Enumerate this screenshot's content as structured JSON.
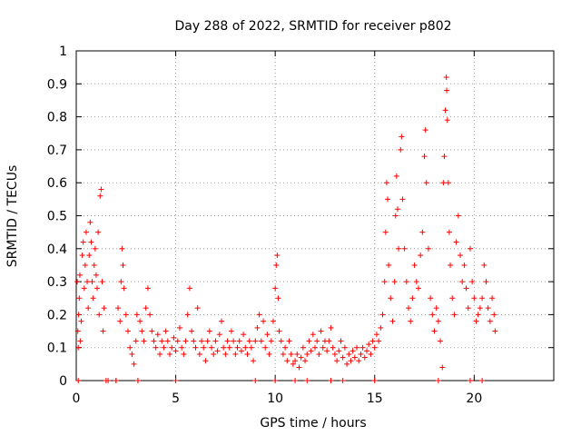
{
  "chart_data": {
    "type": "scatter",
    "title": "Day 288 of 2022, SRMTID for receiver p802",
    "xlabel": "GPS time / hours",
    "ylabel": "SRMTID / TECUs",
    "xlim": [
      0,
      24
    ],
    "ylim": [
      0,
      1
    ],
    "xticks": [
      "0",
      "5",
      "10",
      "15",
      "20"
    ],
    "yticks": [
      "0",
      "0.1",
      "0.2",
      "0.3",
      "0.4",
      "0.5",
      "0.6",
      "0.7",
      "0.8",
      "0.9",
      "1"
    ],
    "grid": true,
    "marker": "+",
    "color": "#ff0000",
    "series": [
      {
        "name": "SRMTID",
        "points": [
          [
            0.05,
            0.3
          ],
          [
            0.08,
            0.15
          ],
          [
            0.1,
            0.1
          ],
          [
            0.12,
            0.2
          ],
          [
            0.15,
            0.25
          ],
          [
            0.18,
            0.32
          ],
          [
            0.2,
            0.12
          ],
          [
            0.25,
            0.18
          ],
          [
            0.3,
            0.38
          ],
          [
            0.35,
            0.42
          ],
          [
            0.4,
            0.28
          ],
          [
            0.45,
            0.35
          ],
          [
            0.5,
            0.45
          ],
          [
            0.55,
            0.3
          ],
          [
            0.6,
            0.22
          ],
          [
            0.65,
            0.38
          ],
          [
            0.7,
            0.48
          ],
          [
            0.75,
            0.42
          ],
          [
            0.8,
            0.3
          ],
          [
            0.85,
            0.25
          ],
          [
            0.9,
            0.35
          ],
          [
            0.95,
            0.4
          ],
          [
            1.0,
            0.32
          ],
          [
            1.05,
            0.28
          ],
          [
            1.1,
            0.45
          ],
          [
            1.15,
            0.2
          ],
          [
            1.2,
            0.56
          ],
          [
            1.25,
            0.58
          ],
          [
            1.3,
            0.3
          ],
          [
            1.35,
            0.15
          ],
          [
            1.4,
            0.22
          ],
          [
            1.5,
            0.0
          ],
          [
            2.0,
            0.0
          ],
          [
            2.1,
            0.22
          ],
          [
            2.2,
            0.18
          ],
          [
            2.25,
            0.3
          ],
          [
            2.3,
            0.4
          ],
          [
            2.35,
            0.35
          ],
          [
            2.4,
            0.28
          ],
          [
            2.5,
            0.2
          ],
          [
            2.6,
            0.15
          ],
          [
            2.7,
            0.1
          ],
          [
            2.8,
            0.08
          ],
          [
            2.9,
            0.05
          ],
          [
            3.0,
            0.12
          ],
          [
            3.05,
            0.2
          ],
          [
            3.1,
            0.0
          ],
          [
            3.2,
            0.18
          ],
          [
            3.3,
            0.15
          ],
          [
            3.4,
            0.12
          ],
          [
            3.5,
            0.22
          ],
          [
            3.6,
            0.28
          ],
          [
            3.7,
            0.2
          ],
          [
            3.8,
            0.15
          ],
          [
            3.9,
            0.12
          ],
          [
            4.0,
            0.1
          ],
          [
            4.1,
            0.14
          ],
          [
            4.2,
            0.08
          ],
          [
            4.3,
            0.12
          ],
          [
            4.4,
            0.1
          ],
          [
            4.5,
            0.15
          ],
          [
            4.6,
            0.12
          ],
          [
            4.7,
            0.08
          ],
          [
            4.8,
            0.1
          ],
          [
            4.9,
            0.13
          ],
          [
            5.0,
            0.09
          ],
          [
            5.1,
            0.12
          ],
          [
            5.2,
            0.16
          ],
          [
            5.3,
            0.1
          ],
          [
            5.4,
            0.08
          ],
          [
            5.5,
            0.12
          ],
          [
            5.6,
            0.2
          ],
          [
            5.7,
            0.28
          ],
          [
            5.8,
            0.15
          ],
          [
            5.9,
            0.12
          ],
          [
            6.0,
            0.1
          ],
          [
            6.1,
            0.22
          ],
          [
            6.2,
            0.08
          ],
          [
            6.3,
            0.12
          ],
          [
            6.4,
            0.1
          ],
          [
            6.5,
            0.06
          ],
          [
            6.6,
            0.12
          ],
          [
            6.7,
            0.15
          ],
          [
            6.8,
            0.1
          ],
          [
            6.9,
            0.08
          ],
          [
            7.0,
            0.12
          ],
          [
            7.1,
            0.09
          ],
          [
            7.2,
            0.14
          ],
          [
            7.3,
            0.18
          ],
          [
            7.4,
            0.1
          ],
          [
            7.5,
            0.08
          ],
          [
            7.6,
            0.12
          ],
          [
            7.7,
            0.1
          ],
          [
            7.8,
            0.15
          ],
          [
            7.9,
            0.12
          ],
          [
            8.0,
            0.08
          ],
          [
            8.1,
            0.1
          ],
          [
            8.2,
            0.12
          ],
          [
            8.3,
            0.09
          ],
          [
            8.4,
            0.14
          ],
          [
            8.5,
            0.1
          ],
          [
            8.6,
            0.08
          ],
          [
            8.7,
            0.12
          ],
          [
            8.8,
            0.1
          ],
          [
            8.9,
            0.06
          ],
          [
            9.0,
            0.12
          ],
          [
            9.1,
            0.16
          ],
          [
            9.2,
            0.2
          ],
          [
            9.3,
            0.12
          ],
          [
            9.4,
            0.18
          ],
          [
            9.5,
            0.1
          ],
          [
            9.6,
            0.14
          ],
          [
            9.7,
            0.08
          ],
          [
            9.8,
            0.12
          ],
          [
            9.9,
            0.18
          ],
          [
            10.0,
            0.28
          ],
          [
            10.05,
            0.35
          ],
          [
            10.1,
            0.38
          ],
          [
            10.15,
            0.25
          ],
          [
            10.2,
            0.15
          ],
          [
            10.3,
            0.12
          ],
          [
            10.4,
            0.08
          ],
          [
            10.5,
            0.1
          ],
          [
            10.6,
            0.06
          ],
          [
            10.7,
            0.12
          ],
          [
            10.8,
            0.08
          ],
          [
            10.9,
            0.05
          ],
          [
            11.0,
            0.06
          ],
          [
            11.1,
            0.08
          ],
          [
            11.2,
            0.04
          ],
          [
            11.3,
            0.07
          ],
          [
            11.4,
            0.1
          ],
          [
            11.5,
            0.06
          ],
          [
            11.6,
            0.08
          ],
          [
            11.7,
            0.12
          ],
          [
            11.8,
            0.09
          ],
          [
            11.9,
            0.14
          ],
          [
            12.0,
            0.1
          ],
          [
            12.1,
            0.12
          ],
          [
            12.2,
            0.08
          ],
          [
            12.3,
            0.15
          ],
          [
            12.4,
            0.1
          ],
          [
            12.5,
            0.12
          ],
          [
            12.6,
            0.09
          ],
          [
            12.7,
            0.12
          ],
          [
            12.8,
            0.16
          ],
          [
            12.9,
            0.1
          ],
          [
            13.0,
            0.08
          ],
          [
            13.1,
            0.06
          ],
          [
            13.2,
            0.09
          ],
          [
            13.3,
            0.12
          ],
          [
            13.4,
            0.07
          ],
          [
            13.5,
            0.1
          ],
          [
            13.6,
            0.05
          ],
          [
            13.7,
            0.08
          ],
          [
            13.8,
            0.06
          ],
          [
            13.9,
            0.09
          ],
          [
            14.0,
            0.07
          ],
          [
            14.1,
            0.1
          ],
          [
            14.2,
            0.06
          ],
          [
            14.3,
            0.08
          ],
          [
            14.4,
            0.1
          ],
          [
            14.5,
            0.07
          ],
          [
            14.6,
            0.09
          ],
          [
            14.7,
            0.11
          ],
          [
            14.8,
            0.08
          ],
          [
            14.9,
            0.12
          ],
          [
            15.0,
            0.1
          ],
          [
            15.1,
            0.14
          ],
          [
            15.2,
            0.12
          ],
          [
            15.3,
            0.16
          ],
          [
            15.4,
            0.2
          ],
          [
            15.5,
            0.3
          ],
          [
            15.55,
            0.45
          ],
          [
            15.6,
            0.6
          ],
          [
            15.65,
            0.55
          ],
          [
            15.7,
            0.35
          ],
          [
            15.8,
            0.25
          ],
          [
            15.9,
            0.18
          ],
          [
            16.0,
            0.3
          ],
          [
            16.05,
            0.5
          ],
          [
            16.1,
            0.62
          ],
          [
            16.15,
            0.52
          ],
          [
            16.2,
            0.4
          ],
          [
            16.3,
            0.7
          ],
          [
            16.35,
            0.74
          ],
          [
            16.4,
            0.55
          ],
          [
            16.5,
            0.4
          ],
          [
            16.6,
            0.3
          ],
          [
            16.7,
            0.22
          ],
          [
            16.8,
            0.18
          ],
          [
            16.9,
            0.25
          ],
          [
            17.0,
            0.35
          ],
          [
            17.1,
            0.3
          ],
          [
            17.2,
            0.28
          ],
          [
            17.3,
            0.38
          ],
          [
            17.4,
            0.45
          ],
          [
            17.5,
            0.68
          ],
          [
            17.55,
            0.76
          ],
          [
            17.6,
            0.6
          ],
          [
            17.7,
            0.4
          ],
          [
            17.8,
            0.25
          ],
          [
            17.9,
            0.2
          ],
          [
            18.0,
            0.15
          ],
          [
            18.1,
            0.22
          ],
          [
            18.2,
            0.18
          ],
          [
            18.3,
            0.12
          ],
          [
            18.4,
            0.04
          ],
          [
            18.45,
            0.6
          ],
          [
            18.5,
            0.68
          ],
          [
            18.55,
            0.82
          ],
          [
            18.6,
            0.92
          ],
          [
            18.62,
            0.88
          ],
          [
            18.65,
            0.79
          ],
          [
            18.7,
            0.6
          ],
          [
            18.75,
            0.45
          ],
          [
            18.8,
            0.35
          ],
          [
            18.9,
            0.25
          ],
          [
            19.0,
            0.2
          ],
          [
            19.1,
            0.42
          ],
          [
            19.2,
            0.5
          ],
          [
            19.3,
            0.38
          ],
          [
            19.4,
            0.3
          ],
          [
            19.5,
            0.35
          ],
          [
            19.6,
            0.28
          ],
          [
            19.7,
            0.22
          ],
          [
            19.8,
            0.4
          ],
          [
            19.9,
            0.3
          ],
          [
            20.0,
            0.25
          ],
          [
            20.1,
            0.18
          ],
          [
            20.2,
            0.2
          ],
          [
            20.3,
            0.22
          ],
          [
            20.4,
            0.25
          ],
          [
            20.5,
            0.35
          ],
          [
            20.6,
            0.3
          ],
          [
            20.7,
            0.22
          ],
          [
            20.8,
            0.18
          ],
          [
            20.9,
            0.25
          ],
          [
            21.0,
            0.2
          ],
          [
            21.05,
            0.15
          ],
          [
            0.1,
            0.0
          ],
          [
            1.6,
            0.0
          ],
          [
            2.0,
            0.0
          ],
          [
            3.1,
            0.0
          ],
          [
            5.0,
            0.0
          ],
          [
            9.0,
            0.0
          ],
          [
            10.0,
            0.0
          ],
          [
            11.0,
            0.0
          ],
          [
            11.6,
            0.0
          ],
          [
            12.8,
            0.0
          ],
          [
            13.4,
            0.0
          ],
          [
            15.0,
            0.0
          ],
          [
            18.2,
            0.0
          ],
          [
            19.8,
            0.0
          ],
          [
            20.4,
            0.0
          ]
        ]
      }
    ]
  }
}
